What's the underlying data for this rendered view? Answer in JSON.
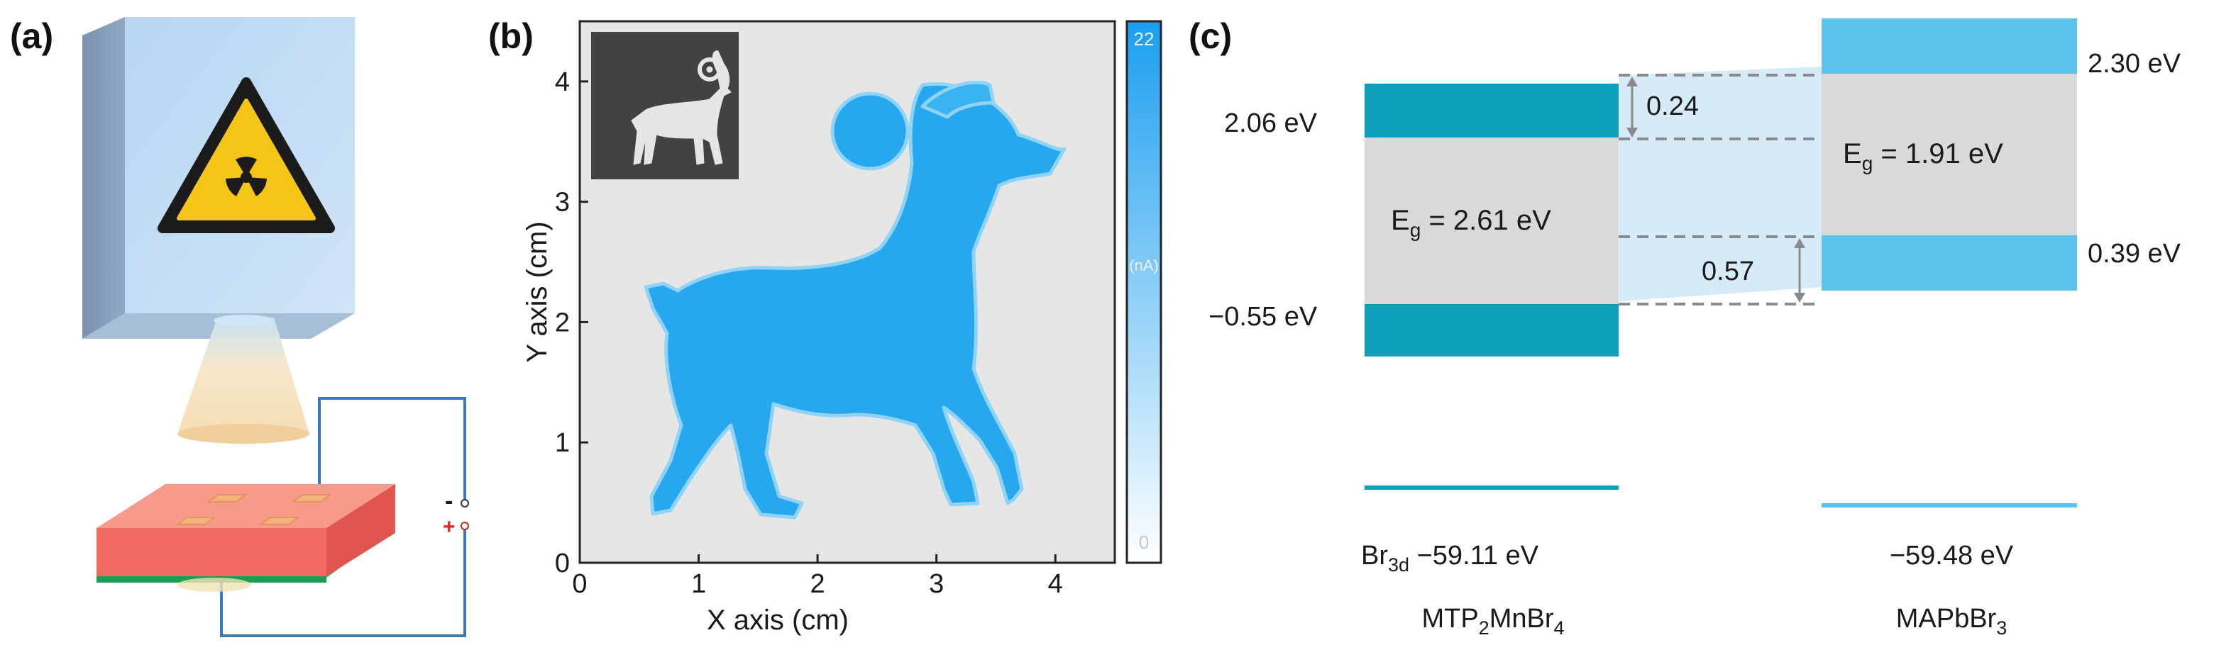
{
  "panel_labels": {
    "a": "(a)",
    "b": "(b)",
    "c": "(c)"
  },
  "colors": {
    "mtp_band": "#0e9fbb",
    "mapb_band": "#5bc3ec",
    "gap_gray": "#d9d9d9",
    "connector": "#d6ebf7",
    "image_blue": "#27a8ee",
    "hazard_yellow": "#f5c518",
    "device_red": "#f26b63",
    "wire_blue": "#3c78c2"
  },
  "panel_a": {
    "icons": [
      "x-ray-source-box",
      "radiation-warning-icon",
      "x-ray-beam-cone",
      "detector-device",
      "circuit-wires"
    ],
    "terminals": {
      "minus": "-",
      "plus": "+"
    }
  },
  "panel_b": {
    "xlabel": "X axis (cm)",
    "ylabel": "Y axis (cm)",
    "xticks": [
      "0",
      "1",
      "2",
      "3",
      "4"
    ],
    "yticks": [
      "0",
      "1",
      "2",
      "3",
      "4"
    ],
    "xlim": [
      0,
      4.5
    ],
    "ylim": [
      0,
      4.5
    ],
    "colorbar": {
      "max": "22",
      "min": "0",
      "unit": "(nA)"
    }
  },
  "panel_c": {
    "mtp": {
      "cb_label": "2.06 eV",
      "vb_label": "−0.55 eV",
      "eg_prefix": "E",
      "eg_sub": "g",
      "eg_value": " = 2.61 eV",
      "core_prefix": "Br",
      "core_sub": "3d",
      "core_value": " −59.11 eV",
      "material_parts": [
        "MTP",
        "2",
        "MnBr",
        "4"
      ]
    },
    "mapb": {
      "cb_label": "2.30 eV",
      "vb_label": "0.39 eV",
      "eg_prefix": "E",
      "eg_sub": "g",
      "eg_value": " = 1.91 eV",
      "core_value": "−59.48 eV",
      "material_parts": [
        "MAPbBr",
        "3"
      ]
    },
    "offsets": {
      "cb": "0.24",
      "vb": "0.57"
    }
  }
}
